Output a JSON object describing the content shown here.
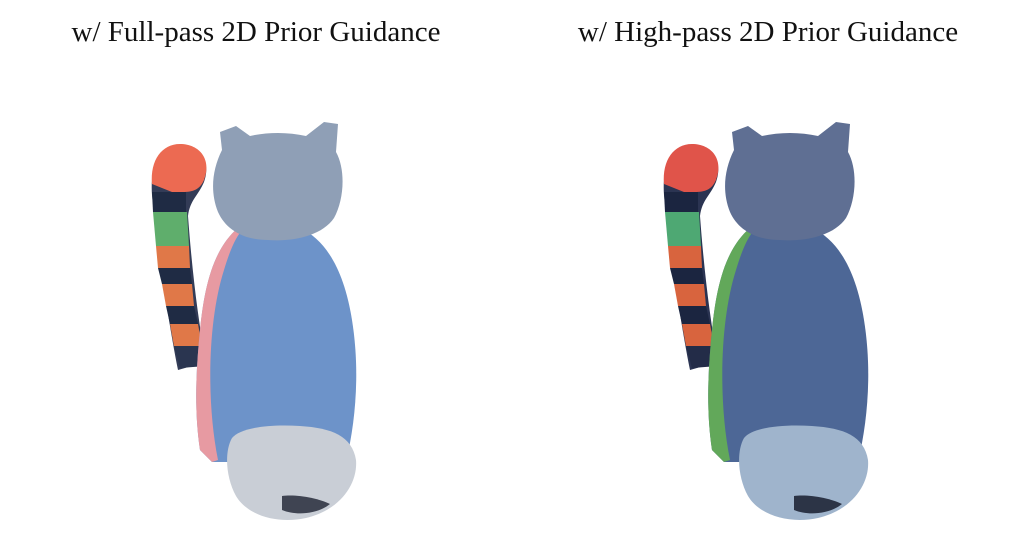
{
  "panels": [
    {
      "caption": "w/ Full-pass 2D Prior Guidance",
      "subject": "cat-figurine-rear-view",
      "colors": {
        "body": "#6d93c9",
        "head": "#8f9fb6",
        "base": "#c9ced6",
        "tail_tip": "#ec6a52",
        "stripe_dark": "#1f2b44",
        "stripe_orange": "#e07848",
        "stripe_green": "#5fae6c",
        "edge": "#e79aa2"
      }
    },
    {
      "caption": "w/ High-pass 2D Prior Guidance",
      "subject": "cat-figurine-rear-view",
      "colors": {
        "body": "#4d6796",
        "head": "#5f6f93",
        "base": "#9fb4cc",
        "tail_tip": "#e0544a",
        "stripe_dark": "#1b2540",
        "stripe_orange": "#d8643e",
        "stripe_green": "#4ea873",
        "edge": "#62a85a"
      }
    }
  ]
}
